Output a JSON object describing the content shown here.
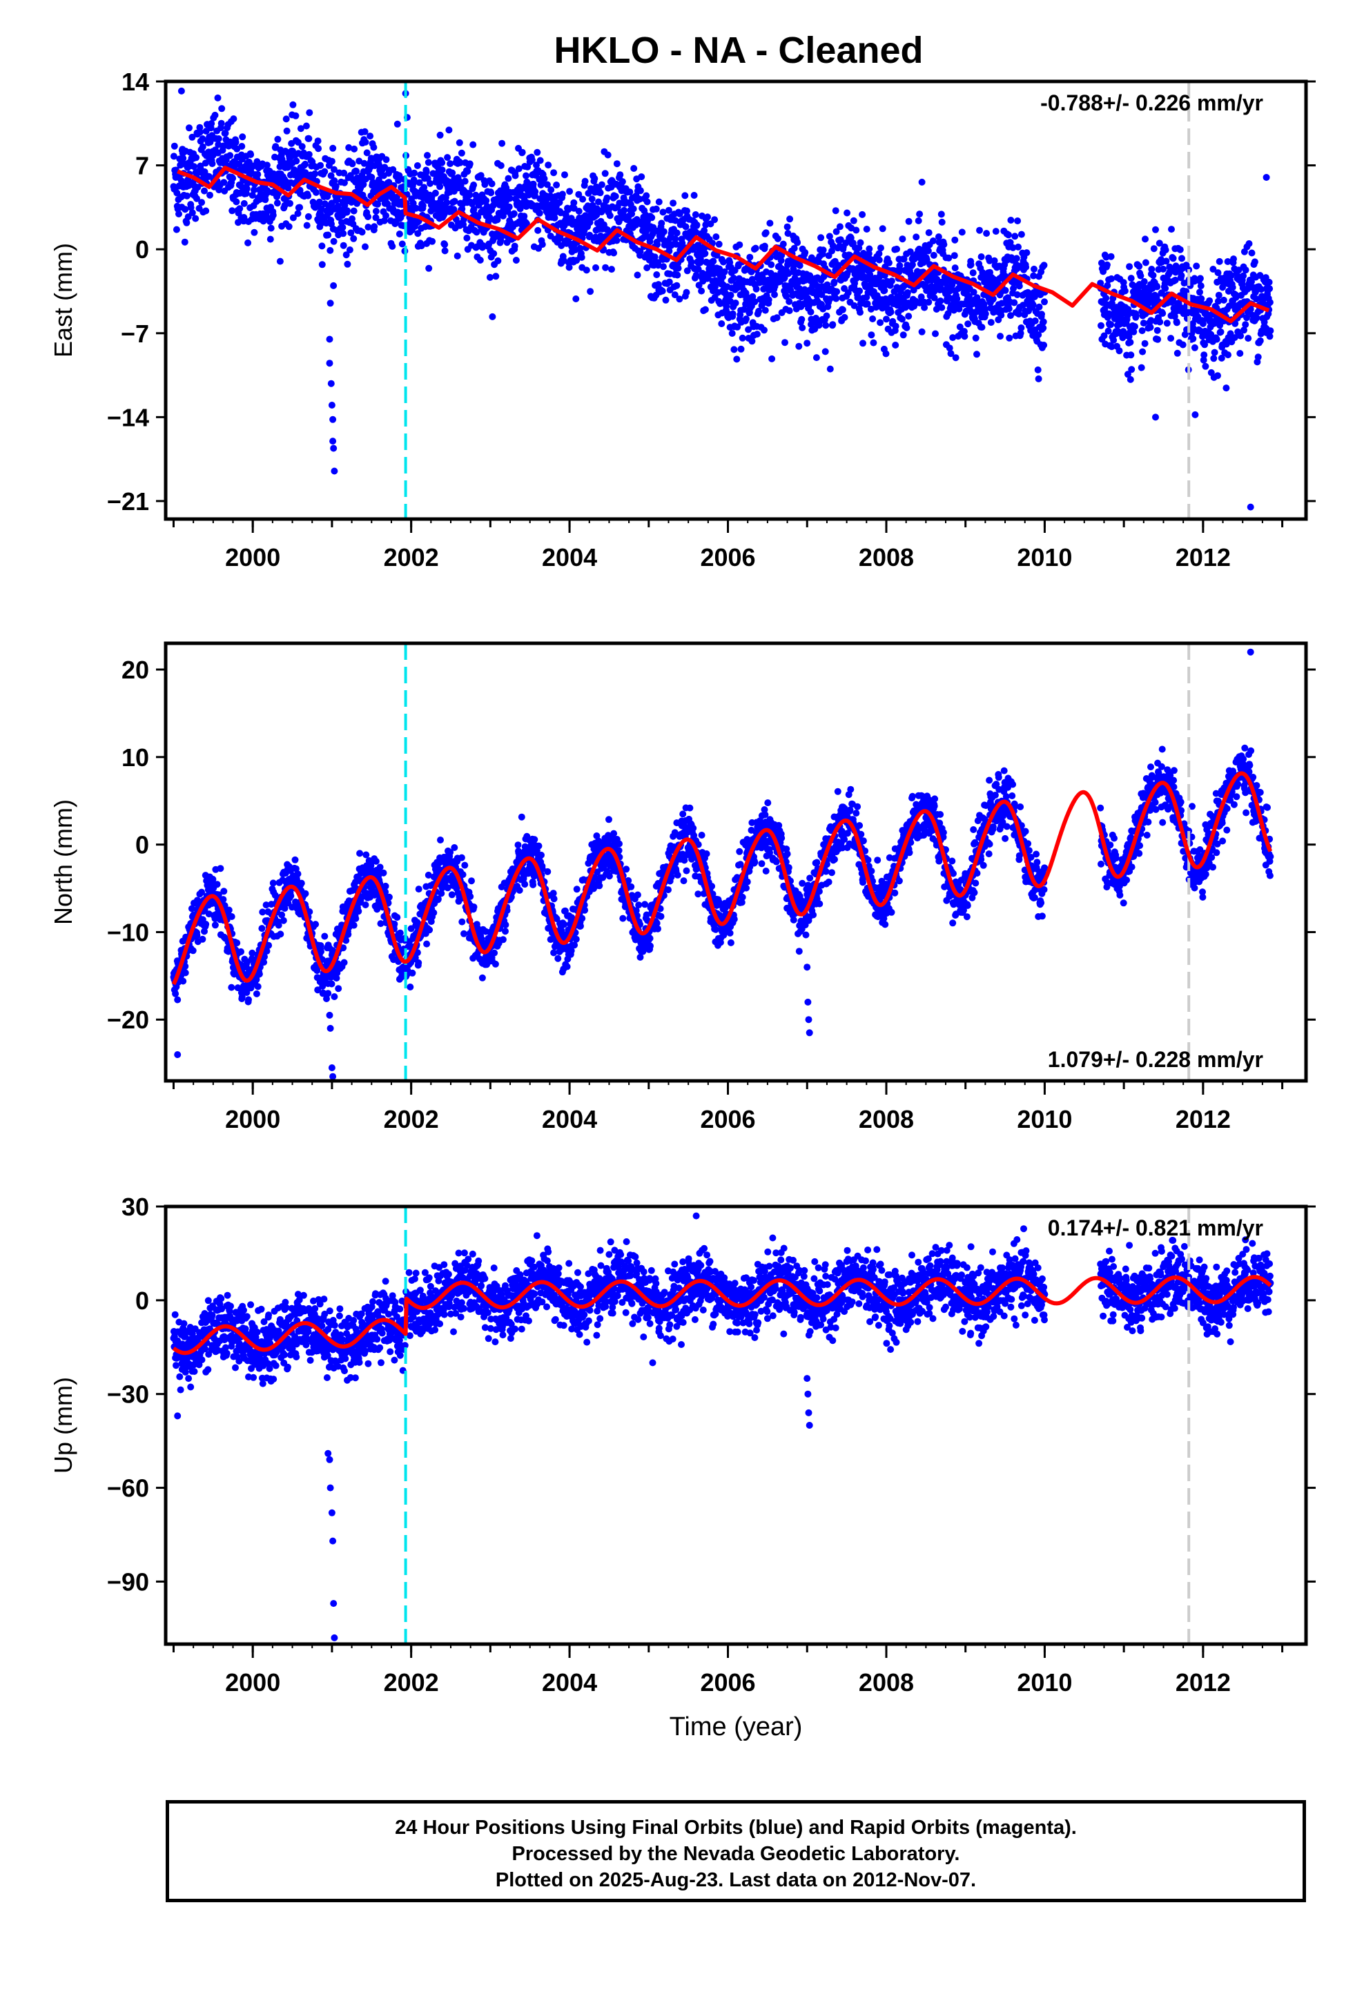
{
  "title": "HKLO  - NA - Cleaned",
  "footer": {
    "line1": "24 Hour Positions Using Final Orbits (blue) and Rapid Orbits (magenta).",
    "line2": "Processed by the Nevada Geodetic Laboratory.",
    "line3": "Plotted on 2025-Aug-23. Last data on 2012-Nov-07."
  },
  "colors": {
    "data": "#0000ff",
    "model": "#ff0000",
    "equipment_change": "#00e5ee",
    "other_event": "#cccccc"
  },
  "chart_data": [
    {
      "type": "scatter",
      "ylabel": "East (mm)",
      "xlabel": "",
      "xlim": [
        1998.9,
        2013.3
      ],
      "ylim": [
        -22.5,
        14
      ],
      "yticks": [
        14,
        7,
        0,
        -7,
        -14,
        -21
      ],
      "xticks": [
        2000,
        2002,
        2004,
        2006,
        2008,
        2010,
        2012
      ],
      "rate": "-0.788+/- 0.226 mm/yr",
      "rate_position": "top-right",
      "model_points": [
        [
          1999.05,
          6.5
        ],
        [
          1999.25,
          6.0
        ],
        [
          1999.45,
          5.2
        ],
        [
          1999.65,
          6.8
        ],
        [
          1999.85,
          6.2
        ],
        [
          2000.05,
          5.6
        ],
        [
          2000.25,
          5.4
        ],
        [
          2000.45,
          4.5
        ],
        [
          2000.65,
          5.8
        ],
        [
          2000.85,
          5.2
        ],
        [
          2001.05,
          4.7
        ],
        [
          2001.25,
          4.6
        ],
        [
          2001.45,
          3.7
        ],
        [
          2001.6,
          4.6
        ],
        [
          2001.75,
          5.2
        ],
        [
          2001.92,
          4.3
        ],
        [
          2001.93,
          3.0
        ],
        [
          2002.1,
          2.7
        ],
        [
          2002.35,
          1.8
        ],
        [
          2002.6,
          3.1
        ],
        [
          2002.85,
          2.2
        ],
        [
          2003.1,
          1.7
        ],
        [
          2003.35,
          0.9
        ],
        [
          2003.6,
          2.5
        ],
        [
          2003.85,
          1.5
        ],
        [
          2004.1,
          0.8
        ],
        [
          2004.35,
          -0.1
        ],
        [
          2004.6,
          1.6
        ],
        [
          2004.85,
          0.6
        ],
        [
          2005.1,
          0.0
        ],
        [
          2005.35,
          -0.9
        ],
        [
          2005.6,
          1.0
        ],
        [
          2005.85,
          -0.1
        ],
        [
          2006.1,
          -0.6
        ],
        [
          2006.35,
          -1.6
        ],
        [
          2006.6,
          0.2
        ],
        [
          2006.85,
          -0.7
        ],
        [
          2007.1,
          -1.4
        ],
        [
          2007.35,
          -2.3
        ],
        [
          2007.6,
          -0.6
        ],
        [
          2007.85,
          -1.5
        ],
        [
          2008.1,
          -2.1
        ],
        [
          2008.35,
          -3.0
        ],
        [
          2008.6,
          -1.4
        ],
        [
          2008.85,
          -2.3
        ],
        [
          2009.1,
          -2.9
        ],
        [
          2009.35,
          -3.8
        ],
        [
          2009.6,
          -2.1
        ],
        [
          2009.85,
          -3.0
        ],
        [
          2010.1,
          -3.6
        ],
        [
          2010.35,
          -4.7
        ],
        [
          2010.6,
          -2.9
        ],
        [
          2010.85,
          -3.7
        ],
        [
          2011.1,
          -4.3
        ],
        [
          2011.35,
          -5.3
        ],
        [
          2011.6,
          -3.7
        ],
        [
          2011.85,
          -4.6
        ],
        [
          2012.1,
          -5.0
        ],
        [
          2012.35,
          -6.0
        ],
        [
          2012.6,
          -4.5
        ],
        [
          2012.83,
          -5.1
        ]
      ],
      "seg1": [
        1999.0,
        2001.92,
        7.0,
        4.0
      ],
      "seg2": [
        2001.93,
        2005.0,
        4.5,
        2.0
      ],
      "seg3": [
        2005.0,
        2006.6,
        1.0,
        -4.5
      ],
      "seg4": [
        2006.6,
        2010.0,
        -2.0,
        -4.0
      ],
      "seg5": [
        2010.7,
        2012.85,
        -4.5,
        -5.0
      ],
      "gap": [
        2010.0,
        2010.7
      ],
      "noise": 2.0,
      "season_amp": 1.2,
      "outliers": [
        [
          2000.97,
          -9.5
        ],
        [
          2000.97,
          -7.5
        ],
        [
          2000.98,
          -4.5
        ],
        [
          2000.99,
          -11.2
        ],
        [
          2001.0,
          -13.0
        ],
        [
          2001.01,
          -14.2
        ],
        [
          2001.01,
          -16.0
        ],
        [
          2001.02,
          -16.6
        ],
        [
          2001.03,
          -18.5
        ],
        [
          2001.93,
          13.0
        ],
        [
          2001.95,
          11.0
        ],
        [
          1999.1,
          13.2
        ],
        [
          2011.4,
          -14.0
        ],
        [
          2011.9,
          -13.8
        ],
        [
          2012.6,
          -21.5
        ],
        [
          2012.8,
          6.0
        ],
        [
          2008.45,
          5.6
        ]
      ]
    },
    {
      "type": "scatter",
      "ylabel": "North (mm)",
      "xlabel": "",
      "xlim": [
        1998.9,
        2013.3
      ],
      "ylim": [
        -27,
        23
      ],
      "yticks": [
        20,
        10,
        0,
        -10,
        -20
      ],
      "xticks": [
        2000,
        2002,
        2004,
        2006,
        2008,
        2010,
        2012
      ],
      "rate": "1.079+/- 0.228 mm/yr",
      "rate_position": "bottom-right",
      "trend": [
        -11.2,
        1.079
      ],
      "season_amp": 5.0,
      "noise": 1.5,
      "gap": [
        2010.0,
        2010.7
      ],
      "outliers": [
        [
          1999.05,
          -24.0
        ],
        [
          2000.95,
          -17.0
        ],
        [
          2000.97,
          -19.5
        ],
        [
          2000.98,
          -21.0
        ],
        [
          2001.0,
          -25.5
        ],
        [
          2001.01,
          -26.5
        ],
        [
          2007.0,
          -14.0
        ],
        [
          2007.01,
          -18.0
        ],
        [
          2007.02,
          -20.0
        ],
        [
          2007.03,
          -21.5
        ],
        [
          2012.6,
          22.0
        ]
      ]
    },
    {
      "type": "scatter",
      "ylabel": "Up (mm)",
      "xlabel": "Time (year)",
      "xlim": [
        1998.9,
        2013.3
      ],
      "ylim": [
        -110,
        30
      ],
      "yticks": [
        30,
        0,
        -30,
        -60,
        -90
      ],
      "xticks": [
        2000,
        2002,
        2004,
        2006,
        2008,
        2010,
        2012
      ],
      "rate": "0.174+/- 0.821 mm/yr",
      "rate_position": "top-right",
      "offset_year": 2001.93,
      "before_offset": [
        -13.0,
        -10.0
      ],
      "after_offset": [
        1.5,
        3.5
      ],
      "season_amp": 4.0,
      "noise": 5.0,
      "gap": [
        2010.0,
        2010.7
      ],
      "outliers": [
        [
          1999.05,
          -37.0
        ],
        [
          2000.95,
          -49.0
        ],
        [
          2000.97,
          -51.0
        ],
        [
          2000.98,
          -60.0
        ],
        [
          2001.0,
          -68.0
        ],
        [
          2001.01,
          -77.0
        ],
        [
          2001.02,
          -97.0
        ],
        [
          2001.03,
          -108.0
        ],
        [
          2007.0,
          -25.0
        ],
        [
          2007.01,
          -30.0
        ],
        [
          2007.02,
          -36.0
        ],
        [
          2007.03,
          -40.0
        ],
        [
          2005.6,
          27.0
        ],
        [
          2005.05,
          -20.0
        ]
      ]
    }
  ],
  "events": [
    {
      "year": 2001.93,
      "type": "equipment_change"
    },
    {
      "year": 2011.82,
      "type": "other_event"
    }
  ]
}
